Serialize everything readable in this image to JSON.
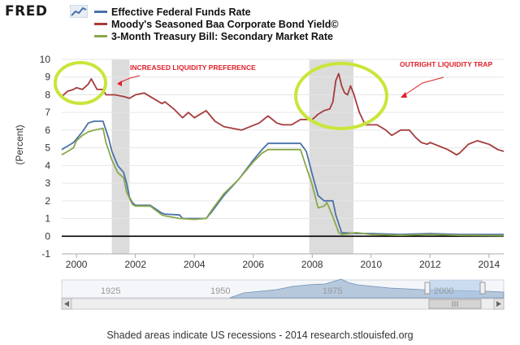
{
  "header": {
    "logo_text": "FRED",
    "logo_icon": "trend-chart-icon"
  },
  "legend": [
    {
      "name": "Effective Federal Funds Rate",
      "color": "#4a72a8"
    },
    {
      "name": "Moody's Seasoned Baa Corporate Bond Yield©",
      "color": "#a63c3c"
    },
    {
      "name": "3-Month Treasury Bill: Secondary Market Rate",
      "color": "#8aa84a"
    }
  ],
  "annotations": [
    {
      "text": "INCREASED LIQUIDITY PREFERENCE"
    },
    {
      "text": "OUTRIGHT LIQUIDITY TRAP"
    }
  ],
  "footer": {
    "text": "Shaded areas indicate US recessions - 2014 research.stlouisfed.org"
  },
  "navigator": {
    "labels": [
      "1925",
      "1950",
      "1975",
      "2000"
    ]
  },
  "chart_data": {
    "type": "line",
    "xlabel": "",
    "ylabel": "(Percent)",
    "xlim": [
      1999.5,
      2014.5
    ],
    "ylim": [
      -1,
      10
    ],
    "x_ticks": [
      "2000",
      "2002",
      "2004",
      "2006",
      "2008",
      "2010",
      "2012",
      "2014"
    ],
    "y_ticks": [
      "10",
      "9",
      "8",
      "7",
      "6",
      "5",
      "4",
      "3",
      "2",
      "1",
      "0",
      "-1"
    ],
    "recessions": [
      [
        2001.2,
        2001.8
      ],
      [
        2007.9,
        2009.4
      ]
    ],
    "grid": "horizontal",
    "legend_position": "top",
    "series": [
      {
        "name": "Effective Federal Funds Rate",
        "color": "#4a72a8",
        "points": [
          [
            1999.5,
            4.9
          ],
          [
            1999.7,
            5.1
          ],
          [
            1999.9,
            5.3
          ],
          [
            2000.0,
            5.5
          ],
          [
            2000.2,
            5.9
          ],
          [
            2000.4,
            6.4
          ],
          [
            2000.6,
            6.5
          ],
          [
            2000.9,
            6.5
          ],
          [
            2001.0,
            6.0
          ],
          [
            2001.1,
            5.5
          ],
          [
            2001.2,
            4.8
          ],
          [
            2001.4,
            4.0
          ],
          [
            2001.6,
            3.6
          ],
          [
            2001.7,
            3.0
          ],
          [
            2001.8,
            2.2
          ],
          [
            2001.9,
            1.9
          ],
          [
            2002.0,
            1.75
          ],
          [
            2002.5,
            1.75
          ],
          [
            2002.9,
            1.3
          ],
          [
            2003.0,
            1.25
          ],
          [
            2003.5,
            1.2
          ],
          [
            2003.6,
            1.0
          ],
          [
            2004.0,
            1.0
          ],
          [
            2004.4,
            1.0
          ],
          [
            2004.6,
            1.4
          ],
          [
            2005.0,
            2.3
          ],
          [
            2005.5,
            3.2
          ],
          [
            2006.0,
            4.3
          ],
          [
            2006.3,
            4.9
          ],
          [
            2006.5,
            5.25
          ],
          [
            2007.0,
            5.25
          ],
          [
            2007.6,
            5.25
          ],
          [
            2007.8,
            4.8
          ],
          [
            2008.0,
            3.5
          ],
          [
            2008.2,
            2.3
          ],
          [
            2008.4,
            2.0
          ],
          [
            2008.7,
            2.0
          ],
          [
            2008.8,
            1.2
          ],
          [
            2009.0,
            0.2
          ],
          [
            2009.5,
            0.15
          ],
          [
            2010.0,
            0.15
          ],
          [
            2011.0,
            0.1
          ],
          [
            2012.0,
            0.15
          ],
          [
            2013.0,
            0.1
          ],
          [
            2014.5,
            0.1
          ]
        ]
      },
      {
        "name": "Moody's Seasoned Baa Corporate Bond Yield©",
        "color": "#a63c3c",
        "points": [
          [
            1999.5,
            7.9
          ],
          [
            1999.7,
            8.2
          ],
          [
            1999.9,
            8.3
          ],
          [
            2000.0,
            8.4
          ],
          [
            2000.2,
            8.3
          ],
          [
            2000.4,
            8.6
          ],
          [
            2000.5,
            8.9
          ],
          [
            2000.7,
            8.3
          ],
          [
            2000.9,
            8.3
          ],
          [
            2001.0,
            8.0
          ],
          [
            2001.3,
            8.0
          ],
          [
            2001.6,
            7.9
          ],
          [
            2001.8,
            7.8
          ],
          [
            2002.0,
            8.0
          ],
          [
            2002.3,
            8.1
          ],
          [
            2002.6,
            7.8
          ],
          [
            2002.9,
            7.5
          ],
          [
            2003.0,
            7.6
          ],
          [
            2003.3,
            7.2
          ],
          [
            2003.6,
            6.7
          ],
          [
            2003.8,
            7.0
          ],
          [
            2004.0,
            6.7
          ],
          [
            2004.4,
            7.1
          ],
          [
            2004.7,
            6.5
          ],
          [
            2005.0,
            6.2
          ],
          [
            2005.3,
            6.1
          ],
          [
            2005.6,
            6.0
          ],
          [
            2005.9,
            6.2
          ],
          [
            2006.2,
            6.4
          ],
          [
            2006.5,
            6.8
          ],
          [
            2006.8,
            6.4
          ],
          [
            2007.0,
            6.3
          ],
          [
            2007.3,
            6.3
          ],
          [
            2007.6,
            6.6
          ],
          [
            2007.8,
            6.6
          ],
          [
            2008.0,
            6.6
          ],
          [
            2008.2,
            6.9
          ],
          [
            2008.4,
            7.1
          ],
          [
            2008.6,
            7.2
          ],
          [
            2008.7,
            7.6
          ],
          [
            2008.8,
            8.8
          ],
          [
            2008.9,
            9.2
          ],
          [
            2009.0,
            8.5
          ],
          [
            2009.1,
            8.1
          ],
          [
            2009.2,
            8.0
          ],
          [
            2009.3,
            8.5
          ],
          [
            2009.4,
            8.1
          ],
          [
            2009.6,
            7.0
          ],
          [
            2009.8,
            6.3
          ],
          [
            2010.0,
            6.3
          ],
          [
            2010.2,
            6.3
          ],
          [
            2010.5,
            6.0
          ],
          [
            2010.7,
            5.7
          ],
          [
            2010.9,
            5.9
          ],
          [
            2011.0,
            6.0
          ],
          [
            2011.3,
            6.0
          ],
          [
            2011.5,
            5.6
          ],
          [
            2011.7,
            5.3
          ],
          [
            2011.9,
            5.2
          ],
          [
            2012.0,
            5.3
          ],
          [
            2012.3,
            5.1
          ],
          [
            2012.6,
            4.9
          ],
          [
            2012.9,
            4.6
          ],
          [
            2013.0,
            4.7
          ],
          [
            2013.3,
            5.2
          ],
          [
            2013.6,
            5.4
          ],
          [
            2013.8,
            5.3
          ],
          [
            2014.0,
            5.2
          ],
          [
            2014.3,
            4.9
          ],
          [
            2014.5,
            4.8
          ]
        ]
      },
      {
        "name": "3-Month Treasury Bill: Secondary Market Rate",
        "color": "#8aa84a",
        "points": [
          [
            1999.5,
            4.6
          ],
          [
            1999.7,
            4.8
          ],
          [
            1999.9,
            5.0
          ],
          [
            2000.0,
            5.4
          ],
          [
            2000.2,
            5.7
          ],
          [
            2000.4,
            5.9
          ],
          [
            2000.6,
            6.0
          ],
          [
            2000.9,
            6.1
          ],
          [
            2001.0,
            5.3
          ],
          [
            2001.2,
            4.3
          ],
          [
            2001.4,
            3.6
          ],
          [
            2001.6,
            3.3
          ],
          [
            2001.7,
            2.5
          ],
          [
            2001.9,
            1.8
          ],
          [
            2002.0,
            1.7
          ],
          [
            2002.5,
            1.7
          ],
          [
            2002.9,
            1.2
          ],
          [
            2003.0,
            1.15
          ],
          [
            2003.5,
            1.0
          ],
          [
            2004.0,
            0.95
          ],
          [
            2004.4,
            1.0
          ],
          [
            2004.6,
            1.5
          ],
          [
            2005.0,
            2.4
          ],
          [
            2005.5,
            3.2
          ],
          [
            2006.0,
            4.2
          ],
          [
            2006.3,
            4.7
          ],
          [
            2006.5,
            4.9
          ],
          [
            2007.0,
            4.9
          ],
          [
            2007.6,
            4.9
          ],
          [
            2007.8,
            3.9
          ],
          [
            2008.0,
            2.9
          ],
          [
            2008.2,
            1.6
          ],
          [
            2008.4,
            1.7
          ],
          [
            2008.5,
            1.9
          ],
          [
            2008.7,
            1.1
          ],
          [
            2008.9,
            0.2
          ],
          [
            2009.0,
            0.1
          ],
          [
            2009.5,
            0.2
          ],
          [
            2010.0,
            0.1
          ],
          [
            2011.0,
            0.05
          ],
          [
            2012.0,
            0.1
          ],
          [
            2013.0,
            0.05
          ],
          [
            2014.5,
            0.03
          ]
        ]
      }
    ]
  }
}
